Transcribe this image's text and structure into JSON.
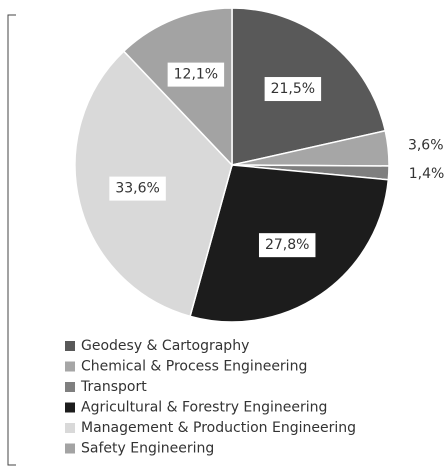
{
  "chart_data": {
    "type": "pie",
    "categories": [
      "Geodesy & Cartography",
      "Chemical & Process Engineering",
      "Transport",
      "Agricultural & Forestry Engineering",
      "Management & Production Engineering",
      "Safety Engineering"
    ],
    "values": [
      21.5,
      3.6,
      1.4,
      27.8,
      33.6,
      12.1
    ],
    "value_labels": [
      "21,5%",
      "3,6%",
      "1,4%",
      "27,8%",
      "33,6%",
      "12,1%"
    ],
    "colors": [
      "#595959",
      "#a6a6a6",
      "#7f7f7f",
      "#1c1c1c",
      "#d9d9d9",
      "#a3a3a3"
    ],
    "legend": "bottom"
  }
}
